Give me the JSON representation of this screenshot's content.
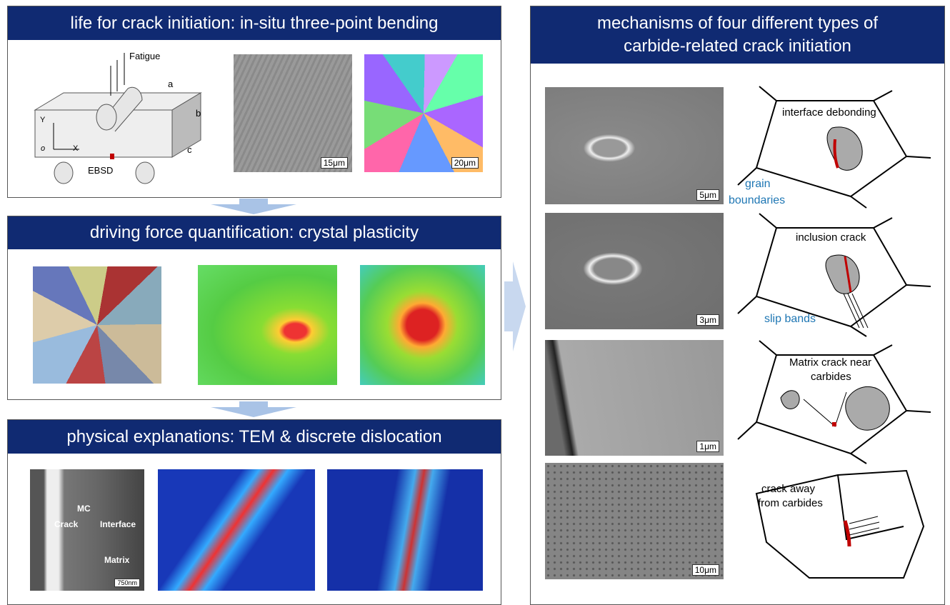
{
  "panels": {
    "p1": {
      "title": "life for crack initiation: in-situ three-point bending",
      "schematic": {
        "load": "Fatigue",
        "dims": [
          "a",
          "b",
          "c"
        ],
        "axes": {
          "y": "Y",
          "x": "X",
          "origin": "o"
        },
        "marker": "EBSD"
      },
      "scalebars": [
        "15μm",
        "20μm"
      ]
    },
    "p2": {
      "title": "driving force quantification: crystal plasticity"
    },
    "p3": {
      "title": "physical explanations: TEM & discrete dislocation",
      "tem_labels": {
        "mc": "MC",
        "crack": "Crack",
        "interface": "Interface",
        "matrix": "Matrix",
        "scale": "750nm"
      }
    },
    "right": {
      "title_line1": "mechanisms of four different types of",
      "title_line2": "carbide-related crack initiation",
      "rows": [
        {
          "scale": "5μm",
          "label": "interface debonding",
          "annotation_line1": "grain",
          "annotation_line2": "boundaries"
        },
        {
          "scale": "3μm",
          "label": "inclusion crack",
          "annotation": "slip bands"
        },
        {
          "scale": "1μm",
          "label_line1": "Matrix crack near",
          "label_line2": "carbides"
        },
        {
          "scale": "10μm",
          "label_line1": "crack away",
          "label_line2": "from carbides"
        }
      ]
    }
  },
  "colors": {
    "header": "#102a72",
    "arrow": "#a9c3e6",
    "annotation": "#1f77b4",
    "marker": "#c00000"
  }
}
